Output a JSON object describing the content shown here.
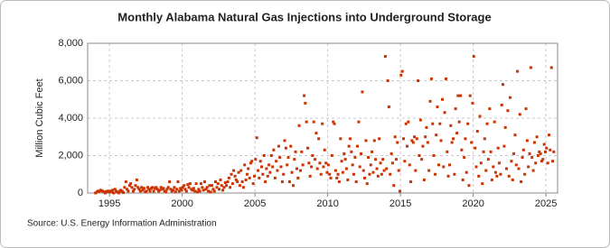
{
  "chart_data": {
    "type": "scatter",
    "title": "Monthly Alabama Natural Gas Injections into Underground Storage",
    "y_label": "Million Cubic Feet",
    "source": "Source: U.S. Energy Information Administration",
    "color": "#cc3300",
    "grid": true,
    "xlim": [
      1993.5,
      2025.8
    ],
    "xticks": [
      1995,
      2000,
      2005,
      2010,
      2015,
      2020,
      2025
    ],
    "ylim": [
      0,
      8000
    ],
    "yticks": [
      0,
      {
        "value": 2000,
        "label": "2,000"
      },
      {
        "value": 4000,
        "label": "4,000"
      },
      {
        "value": 6000,
        "label": "6,000"
      },
      {
        "value": 8000,
        "label": "8,000"
      }
    ],
    "x": [
      1994.04,
      1994.13,
      1994.21,
      1994.29,
      1994.38,
      1994.46,
      1994.54,
      1994.63,
      1994.71,
      1994.79,
      1994.88,
      1994.96,
      1995.04,
      1995.13,
      1995.21,
      1995.29,
      1995.38,
      1995.46,
      1995.54,
      1995.63,
      1995.71,
      1995.79,
      1995.88,
      1995.96,
      1996.04,
      1996.13,
      1996.21,
      1996.29,
      1996.38,
      1996.46,
      1996.54,
      1996.63,
      1996.71,
      1996.79,
      1996.88,
      1996.96,
      1997.04,
      1997.13,
      1997.21,
      1997.29,
      1997.38,
      1997.46,
      1997.54,
      1997.63,
      1997.71,
      1997.79,
      1997.88,
      1997.96,
      1998.04,
      1998.13,
      1998.21,
      1998.29,
      1998.38,
      1998.46,
      1998.54,
      1998.63,
      1998.71,
      1998.79,
      1998.88,
      1998.96,
      1999.04,
      1999.13,
      1999.21,
      1999.29,
      1999.38,
      1999.46,
      1999.54,
      1999.63,
      1999.71,
      1999.79,
      1999.88,
      1999.96,
      2000.04,
      2000.13,
      2000.21,
      2000.29,
      2000.38,
      2000.46,
      2000.54,
      2000.63,
      2000.71,
      2000.79,
      2000.88,
      2000.96,
      2001.04,
      2001.13,
      2001.21,
      2001.29,
      2001.38,
      2001.46,
      2001.54,
      2001.63,
      2001.71,
      2001.79,
      2001.88,
      2001.96,
      2002.04,
      2002.13,
      2002.21,
      2002.29,
      2002.38,
      2002.46,
      2002.54,
      2002.63,
      2002.71,
      2002.79,
      2002.88,
      2002.96,
      2003.04,
      2003.13,
      2003.21,
      2003.29,
      2003.38,
      2003.46,
      2003.54,
      2003.63,
      2003.71,
      2003.79,
      2003.88,
      2003.96,
      2004.04,
      2004.13,
      2004.21,
      2004.29,
      2004.38,
      2004.46,
      2004.54,
      2004.63,
      2004.71,
      2004.79,
      2004.88,
      2004.96,
      2005.04,
      2005.13,
      2005.21,
      2005.29,
      2005.38,
      2005.46,
      2005.54,
      2005.63,
      2005.71,
      2005.79,
      2005.88,
      2005.96,
      2006.04,
      2006.13,
      2006.21,
      2006.29,
      2006.38,
      2006.46,
      2006.54,
      2006.63,
      2006.71,
      2006.79,
      2006.88,
      2006.96,
      2007.04,
      2007.13,
      2007.21,
      2007.29,
      2007.38,
      2007.46,
      2007.54,
      2007.63,
      2007.71,
      2007.79,
      2007.88,
      2007.96,
      2008.04,
      2008.13,
      2008.21,
      2008.29,
      2008.38,
      2008.46,
      2008.54,
      2008.63,
      2008.71,
      2008.79,
      2008.88,
      2008.96,
      2009.04,
      2009.13,
      2009.21,
      2009.29,
      2009.38,
      2009.46,
      2009.54,
      2009.63,
      2009.71,
      2009.79,
      2009.88,
      2009.96,
      2010.04,
      2010.13,
      2010.21,
      2010.29,
      2010.38,
      2010.46,
      2010.54,
      2010.63,
      2010.71,
      2010.79,
      2010.88,
      2010.96,
      2011.04,
      2011.13,
      2011.21,
      2011.29,
      2011.38,
      2011.46,
      2011.54,
      2011.63,
      2011.71,
      2011.79,
      2011.88,
      2011.96,
      2012.04,
      2012.13,
      2012.21,
      2012.29,
      2012.38,
      2012.46,
      2012.54,
      2012.63,
      2012.71,
      2012.79,
      2012.88,
      2012.96,
      2013.04,
      2013.13,
      2013.21,
      2013.29,
      2013.38,
      2013.46,
      2013.54,
      2013.63,
      2013.71,
      2013.79,
      2013.88,
      2013.96,
      2014.04,
      2014.13,
      2014.21,
      2014.29,
      2014.38,
      2014.46,
      2014.54,
      2014.63,
      2014.71,
      2014.79,
      2014.88,
      2014.96,
      2015.04,
      2015.13,
      2015.21,
      2015.29,
      2015.38,
      2015.46,
      2015.54,
      2015.63,
      2015.71,
      2015.79,
      2015.88,
      2015.96,
      2016.04,
      2016.13,
      2016.21,
      2016.29,
      2016.38,
      2016.46,
      2016.54,
      2016.63,
      2016.71,
      2016.79,
      2016.88,
      2016.96,
      2017.04,
      2017.13,
      2017.21,
      2017.29,
      2017.38,
      2017.46,
      2017.54,
      2017.63,
      2017.71,
      2017.79,
      2017.88,
      2017.96,
      2018.04,
      2018.13,
      2018.21,
      2018.29,
      2018.38,
      2018.46,
      2018.54,
      2018.63,
      2018.71,
      2018.79,
      2018.88,
      2018.96,
      2019.04,
      2019.13,
      2019.21,
      2019.29,
      2019.38,
      2019.46,
      2019.54,
      2019.63,
      2019.71,
      2019.79,
      2019.88,
      2019.96,
      2020.04,
      2020.13,
      2020.21,
      2020.29,
      2020.38,
      2020.46,
      2020.54,
      2020.63,
      2020.71,
      2020.79,
      2020.88,
      2020.96,
      2021.04,
      2021.13,
      2021.21,
      2021.29,
      2021.38,
      2021.46,
      2021.54,
      2021.63,
      2021.71,
      2021.79,
      2021.88,
      2021.96,
      2022.04,
      2022.13,
      2022.21,
      2022.29,
      2022.38,
      2022.46,
      2022.54,
      2022.63,
      2022.71,
      2022.79,
      2022.88,
      2022.96,
      2023.04,
      2023.13,
      2023.21,
      2023.29,
      2023.38,
      2023.46,
      2023.54,
      2023.63,
      2023.71,
      2023.79,
      2023.88,
      2023.96,
      2024.04,
      2024.13,
      2024.21,
      2024.29,
      2024.38,
      2024.46,
      2024.54,
      2024.63,
      2024.71,
      2024.79,
      2024.88,
      2024.96,
      2025.04,
      2025.13,
      2025.21,
      2025.29,
      2025.38,
      2025.46,
      2025.54
    ],
    "values": [
      0,
      50,
      100,
      80,
      150,
      120,
      100,
      50,
      0,
      80,
      100,
      50,
      100,
      50,
      150,
      0,
      200,
      100,
      50,
      0,
      100,
      150,
      80,
      20,
      300,
      600,
      200,
      100,
      400,
      500,
      300,
      100,
      200,
      400,
      700,
      300,
      200,
      100,
      300,
      150,
      250,
      50,
      100,
      300,
      200,
      100,
      250,
      300,
      100,
      250,
      300,
      200,
      100,
      150,
      300,
      200,
      250,
      100,
      50,
      200,
      300,
      600,
      200,
      100,
      150,
      300,
      50,
      200,
      600,
      100,
      250,
      150,
      300,
      400,
      200,
      100,
      450,
      300,
      500,
      200,
      150,
      250,
      100,
      500,
      50,
      200,
      100,
      500,
      300,
      150,
      600,
      200,
      300,
      100,
      400,
      50,
      400,
      200,
      100,
      600,
      300,
      500,
      200,
      700,
      400,
      150,
      300,
      550,
      400,
      600,
      800,
      300,
      1000,
      500,
      1200,
      900,
      700,
      600,
      1100,
      400,
      1200,
      600,
      300,
      1500,
      700,
      1000,
      1300,
      800,
      1600,
      1700,
      500,
      900,
      1800,
      2950,
      1200,
      800,
      1700,
      1400,
      1000,
      2000,
      600,
      1300,
      900,
      1500,
      1100,
      2000,
      1400,
      2300,
      800,
      1700,
      1200,
      2500,
      1900,
      1400,
      600,
      1000,
      2800,
      2400,
      1500,
      1900,
      600,
      2500,
      1100,
      400,
      1800,
      2200,
      1300,
      800,
      3600,
      1200,
      2200,
      1500,
      5200,
      4800,
      3800,
      2400,
      1600,
      900,
      1400,
      2000,
      3800,
      1800,
      3200,
      1300,
      2900,
      1600,
      1000,
      3700,
      1400,
      2300,
      1600,
      1100,
      1500,
      1000,
      800,
      2000,
      3800,
      3700,
      1200,
      800,
      1000,
      600,
      2900,
      1700,
      1100,
      2100,
      1800,
      1300,
      700,
      2500,
      2900,
      2200,
      1500,
      1000,
      1900,
      600,
      2500,
      3800,
      1400,
      2100,
      5400,
      1200,
      800,
      2800,
      500,
      1900,
      1000,
      1500,
      2200,
      1100,
      2800,
      1800,
      1300,
      900,
      2900,
      1600,
      1000,
      1800,
      1200,
      7300,
      1300,
      6000,
      4600,
      1000,
      2100,
      1600,
      400,
      3000,
      1800,
      2700,
      1200,
      100,
      6300,
      6500,
      2900,
      1700,
      3700,
      2500,
      3800,
      1500,
      600,
      2800,
      2700,
      3000,
      1200,
      2900,
      6000,
      2000,
      3900,
      1800,
      2500,
      700,
      3000,
      3500,
      2700,
      1200,
      4900,
      6100,
      3700,
      2000,
      1000,
      3100,
      4600,
      1500,
      3700,
      2800,
      5000,
      1400,
      4300,
      6100,
      2200,
      900,
      1500,
      3600,
      2700,
      2900,
      1000,
      4500,
      3200,
      5200,
      3800,
      5200,
      2300,
      700,
      1900,
      2900,
      1100,
      3700,
      400,
      5200,
      2700,
      4800,
      7300,
      2400,
      1400,
      3300,
      900,
      4100,
      1600,
      500,
      2200,
      2900,
      1200,
      3700,
      1800,
      4500,
      2200,
      700,
      1400,
      3800,
      1100,
      900,
      2400,
      1600,
      1000,
      4700,
      5800,
      2500,
      3500,
      1300,
      4400,
      900,
      5100,
      1700,
      700,
      2100,
      3100,
      1500,
      6500,
      1300,
      4200,
      600,
      1900,
      2300,
      1000,
      4500,
      2800,
      1400,
      2100,
      6700,
      1900,
      1200,
      2700,
      1600,
      3000,
      2000,
      2200,
      2100,
      1700,
      1800,
      2600,
      2200,
      2400,
      1600,
      3100,
      2300,
      6700,
      1700,
      2200
    ]
  }
}
